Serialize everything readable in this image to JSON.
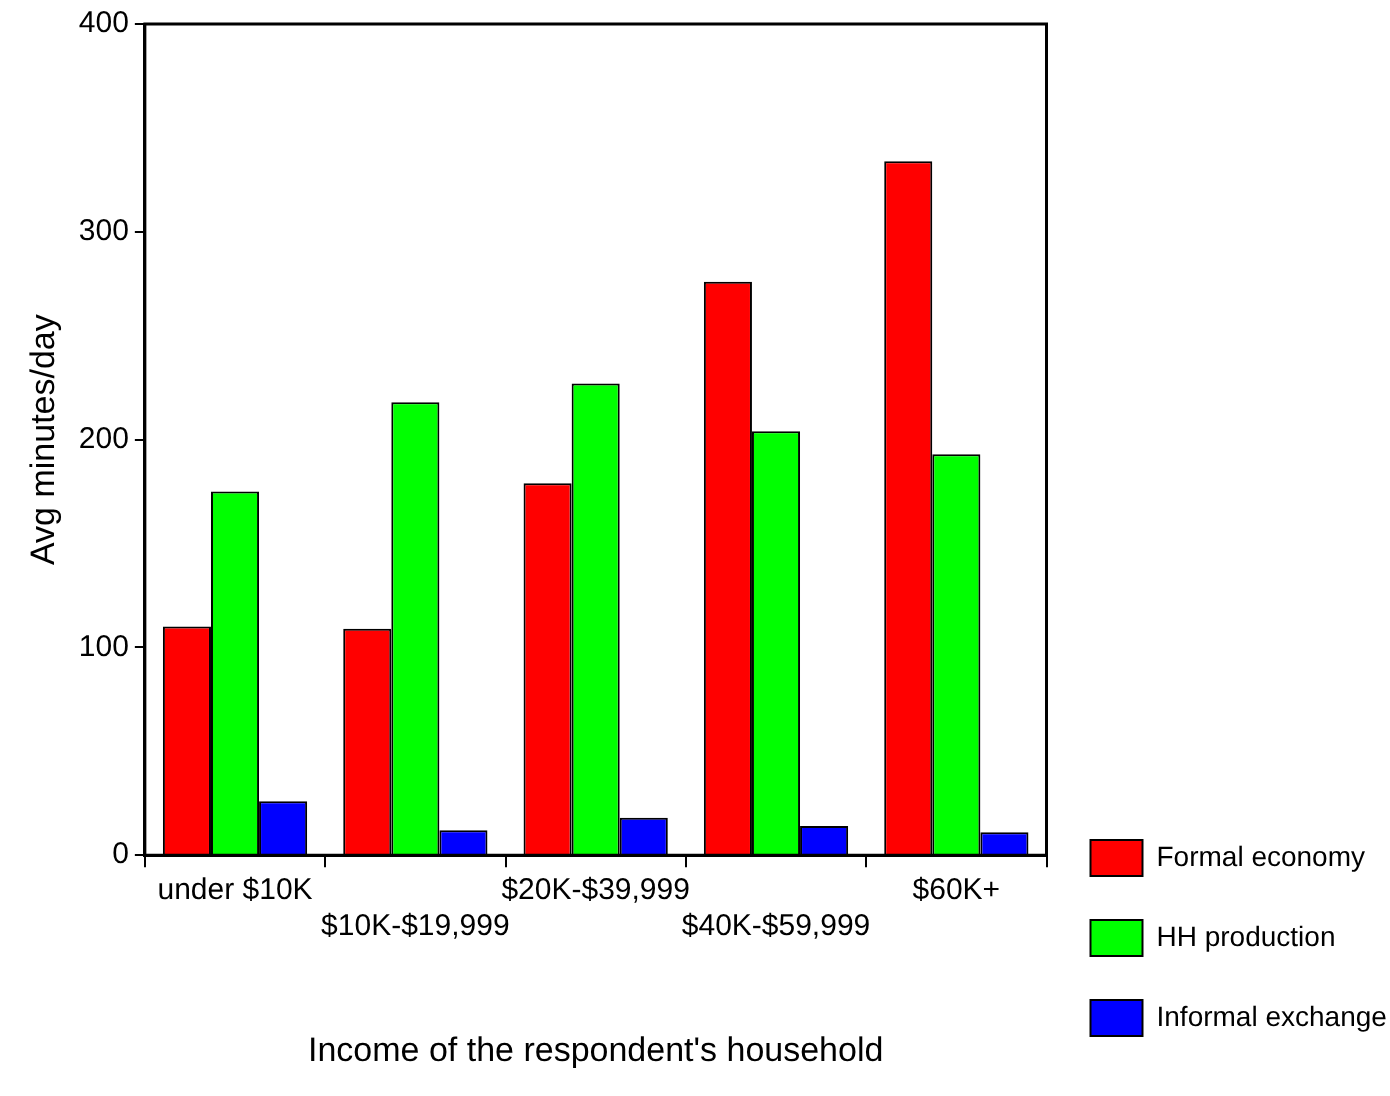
{
  "chart_data": {
    "type": "bar",
    "xlabel": "Income of the respondent's household",
    "ylabel": "Avg minutes/day",
    "categories": [
      "under $10K",
      "$10K-$19,999",
      "$20K-$39,999",
      "$40K-$59,999",
      "$60K+"
    ],
    "series": [
      {
        "name": "Formal economy",
        "color": "#ff0000",
        "values": [
          110,
          109,
          179,
          276,
          334
        ]
      },
      {
        "name": "HH production",
        "color": "#00ff00",
        "values": [
          175,
          218,
          227,
          204,
          193
        ]
      },
      {
        "name": "Informal exchange",
        "color": "#0000ff",
        "values": [
          26,
          12,
          18,
          14,
          11
        ]
      }
    ],
    "ylim": [
      0,
      400
    ],
    "yticks": [
      0,
      100,
      200,
      300,
      400
    ],
    "grid": false,
    "legend": "right"
  }
}
